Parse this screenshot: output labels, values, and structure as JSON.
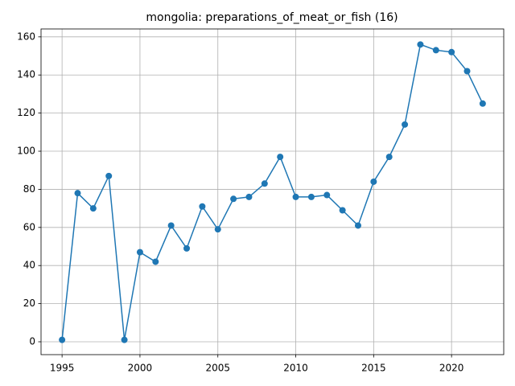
{
  "chart_data": {
    "type": "line",
    "title": "mongolia: preparations_of_meat_or_fish (16)",
    "x": [
      1995,
      1996,
      1997,
      1998,
      1999,
      2000,
      2001,
      2002,
      2003,
      2004,
      2005,
      2006,
      2007,
      2008,
      2009,
      2010,
      2011,
      2012,
      2013,
      2014,
      2015,
      2016,
      2017,
      2018,
      2019,
      2020,
      2021,
      2022
    ],
    "series": [
      {
        "color": "#1f77b4",
        "values": [
          1,
          78,
          70,
          87,
          1,
          47,
          42,
          61,
          49,
          71,
          59,
          75,
          76,
          83,
          97,
          76,
          76,
          77,
          69,
          61,
          84,
          97,
          114,
          156,
          153,
          152,
          142,
          125
        ]
      }
    ],
    "xlim": [
      1993.65,
      2023.35
    ],
    "xticks": [
      1995,
      2000,
      2005,
      2010,
      2015,
      2020
    ],
    "ylim": [
      -6.75,
      164.15
    ],
    "yticks": [
      0,
      20,
      40,
      60,
      80,
      100,
      120,
      140,
      160
    ],
    "grid": true
  }
}
